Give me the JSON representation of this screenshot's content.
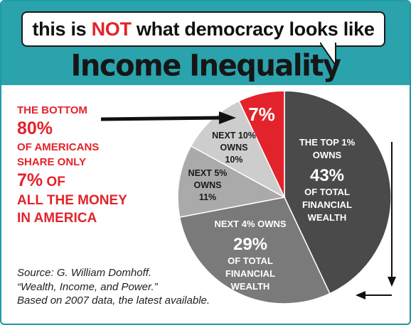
{
  "header": {
    "tagline_pre": "this is ",
    "tagline_emphasis": "NOT",
    "tagline_post": " what democracy looks like",
    "title": "Income Inequality"
  },
  "lede": {
    "line1": "THE BOTTOM",
    "line2": "80%",
    "line3": "OF AMERICANS",
    "line4": "SHARE ONLY",
    "line5a": "7%",
    "line5b": " OF",
    "line6": "ALL THE MONEY",
    "line7": "IN AMERICA"
  },
  "source": {
    "line1": "Source: G. William Domhoff.",
    "line2": "“Wealth, Income, and Power.”",
    "line3": "Based on 2007 data, the latest available."
  },
  "colors": {
    "banner": "#2aa3ad",
    "accent_red": "#e3232b",
    "top1": "#4a4a4a",
    "next4": "#7a7a7a",
    "next5": "#aaaaaa",
    "next10": "#cdcdcd",
    "bottom80": "#e3232b"
  },
  "chart_data": {
    "type": "pie",
    "title": "",
    "slices": [
      {
        "label_lines": [
          "THE TOP 1%",
          "OWNS"
        ],
        "value": 43,
        "value_label": "43%",
        "sub_lines": [
          "OF TOTAL",
          "FINANCIAL",
          "WEALTH"
        ],
        "color": "#4a4a4a"
      },
      {
        "label_lines": [
          "NEXT 4% OWNS"
        ],
        "value": 29,
        "value_label": "29%",
        "sub_lines": [
          "OF TOTAL",
          "FINANCIAL",
          "WEALTH"
        ],
        "color": "#7a7a7a"
      },
      {
        "label_lines": [
          "NEXT 5%",
          "OWNS",
          "11%"
        ],
        "value": 11,
        "value_label": "",
        "sub_lines": [],
        "color": "#aaaaaa"
      },
      {
        "label_lines": [
          "NEXT 10%",
          "OWNS",
          "10%"
        ],
        "value": 10,
        "value_label": "",
        "sub_lines": [],
        "color": "#cdcdcd"
      },
      {
        "label_lines": [],
        "value": 7,
        "value_label": "7%",
        "sub_lines": [],
        "color": "#e3232b"
      }
    ]
  }
}
